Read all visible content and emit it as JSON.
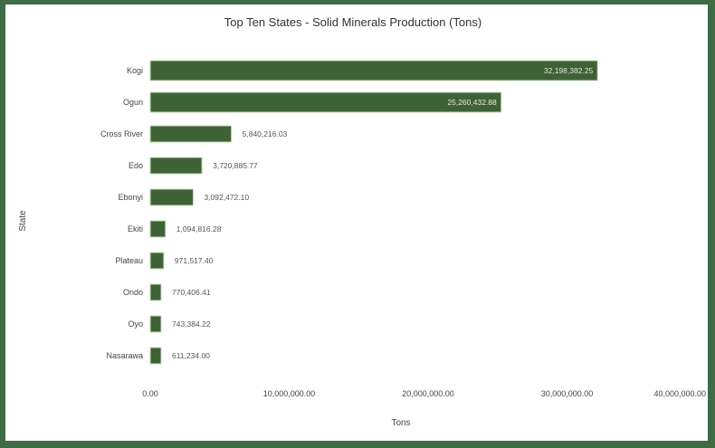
{
  "chart_data": {
    "type": "bar",
    "orientation": "horizontal",
    "title": "Top Ten States - Solid Minerals Production (Tons)",
    "xlabel": "Tons",
    "ylabel": "State",
    "categories": [
      "Kogi",
      "Ogun",
      "Cross River",
      "Edo",
      "Ebonyi",
      "Ekiti",
      "Plateau",
      "Ondo",
      "Oyo",
      "Nasarawa"
    ],
    "values": [
      32198382.25,
      25260432.88,
      5840216.03,
      3720885.77,
      3092472.1,
      1094816.28,
      971517.4,
      770406.41,
      743384.22,
      611234.0
    ],
    "value_labels": [
      "32,198,382.25",
      "25,260,432.88",
      "5,840,216.03",
      "3,720,885.77",
      "3,092,472.10",
      "1,094,816.28",
      "971,517.40",
      "770,406.41",
      "743,384.22",
      "611,234.00"
    ],
    "xlim": [
      0,
      40000000
    ],
    "xticks": [
      0,
      10000000,
      20000000,
      30000000,
      40000000
    ],
    "xtick_labels": [
      "0.00",
      "10,000,000.00",
      "20,000,000.00",
      "30,000,000.00",
      "40,000,000.00"
    ],
    "grid": false,
    "colors": {
      "frame": "#3f6b46",
      "bar_fill": "#3e6236",
      "bar_outline": "#c8ddb8",
      "label_inside": "#dfead6",
      "label_outside": "#555555"
    }
  }
}
